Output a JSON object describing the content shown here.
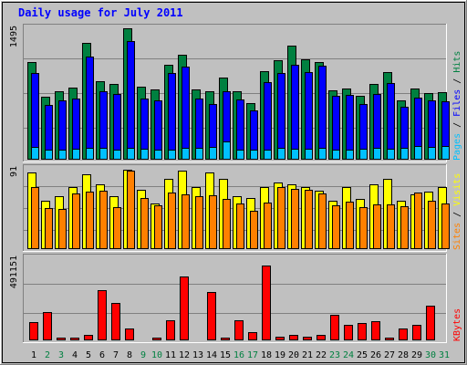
{
  "title": "Daily usage for July 2011",
  "colors": {
    "background": "#c0c0c0",
    "hits": "#008040",
    "files": "#0000ff",
    "pages": "#00c0ff",
    "visits": "#ffff00",
    "sites": "#ff8000",
    "kbytes": "#ff0000",
    "weekday_label": "#000000",
    "weekend_label": "#008040"
  },
  "chart_data": [
    {
      "type": "bar",
      "panel": "hits-files-pages",
      "y_max_label": "1495",
      "ylim": [
        0,
        1495
      ],
      "legend": [
        {
          "name": "Pages",
          "color": "#00c0ff"
        },
        {
          "name": "Files",
          "color": "#0000ff"
        },
        {
          "name": "Hits",
          "color": "#008040"
        }
      ],
      "series": [
        {
          "name": "Hits",
          "values": [
            1110,
            720,
            780,
            820,
            1330,
            890,
            860,
            1495,
            830,
            800,
            1080,
            1190,
            800,
            780,
            930,
            780,
            640,
            1010,
            1130,
            1295,
            1140,
            1110,
            790,
            810,
            730,
            860,
            1000,
            680,
            810,
            760,
            770
          ]
        },
        {
          "name": "Files",
          "values": [
            990,
            620,
            680,
            700,
            1170,
            780,
            750,
            1350,
            700,
            670,
            990,
            1060,
            700,
            630,
            780,
            690,
            560,
            880,
            990,
            1080,
            1000,
            1070,
            730,
            740,
            630,
            750,
            870,
            600,
            710,
            670,
            660
          ]
        },
        {
          "name": "Pages",
          "values": [
            150,
            110,
            110,
            120,
            135,
            130,
            115,
            140,
            120,
            110,
            110,
            130,
            140,
            150,
            205,
            115,
            115,
            110,
            135,
            125,
            125,
            130,
            115,
            115,
            125,
            135,
            125,
            135,
            160,
            145,
            155
          ]
        }
      ]
    },
    {
      "type": "bar",
      "panel": "visits-sites",
      "y_max_label": "91",
      "ylim": [
        0,
        91
      ],
      "legend": [
        {
          "name": "Sites",
          "color": "#ff8000"
        },
        {
          "name": "Visits",
          "color": "#ffff00"
        }
      ],
      "series": [
        {
          "name": "Visits",
          "values": [
            87,
            55,
            60,
            70,
            85,
            73,
            60,
            90,
            67,
            52,
            80,
            89,
            70,
            87,
            80,
            60,
            58,
            70,
            75,
            73,
            70,
            66,
            55,
            70,
            57,
            73,
            80,
            55,
            62,
            65,
            70
          ]
        },
        {
          "name": "Sites",
          "values": [
            70,
            47,
            45,
            63,
            65,
            66,
            48,
            89,
            58,
            50,
            64,
            62,
            60,
            61,
            57,
            52,
            43,
            53,
            70,
            68,
            67,
            63,
            50,
            54,
            48,
            51,
            51,
            49,
            64,
            55,
            52
          ]
        }
      ]
    },
    {
      "type": "bar",
      "panel": "kbytes",
      "y_max_label": "491151",
      "ylim": [
        0,
        491151
      ],
      "legend": [
        {
          "name": "KBytes",
          "color": "#ff0000"
        }
      ],
      "series": [
        {
          "name": "KBytes",
          "values": [
            111000,
            167000,
            14000,
            17000,
            32000,
            299000,
            226000,
            73000,
            7000,
            14000,
            118000,
            383000,
            8000,
            288000,
            17000,
            119000,
            48000,
            445000,
            24000,
            34000,
            24000,
            33000,
            152000,
            92000,
            103000,
            112000,
            16000,
            71000,
            95000,
            208000,
            0
          ]
        }
      ]
    }
  ],
  "x_labels": [
    {
      "label": "1",
      "weekend": false
    },
    {
      "label": "2",
      "weekend": true
    },
    {
      "label": "3",
      "weekend": true
    },
    {
      "label": "4",
      "weekend": false
    },
    {
      "label": "5",
      "weekend": false
    },
    {
      "label": "6",
      "weekend": false
    },
    {
      "label": "7",
      "weekend": false
    },
    {
      "label": "8",
      "weekend": false
    },
    {
      "label": "9",
      "weekend": true
    },
    {
      "label": "10",
      "weekend": true
    },
    {
      "label": "11",
      "weekend": false
    },
    {
      "label": "12",
      "weekend": false
    },
    {
      "label": "13",
      "weekend": false
    },
    {
      "label": "14",
      "weekend": false
    },
    {
      "label": "15",
      "weekend": false
    },
    {
      "label": "16",
      "weekend": true
    },
    {
      "label": "17",
      "weekend": true
    },
    {
      "label": "18",
      "weekend": false
    },
    {
      "label": "19",
      "weekend": false
    },
    {
      "label": "20",
      "weekend": false
    },
    {
      "label": "21",
      "weekend": false
    },
    {
      "label": "22",
      "weekend": false
    },
    {
      "label": "23",
      "weekend": true
    },
    {
      "label": "24",
      "weekend": true
    },
    {
      "label": "25",
      "weekend": false
    },
    {
      "label": "26",
      "weekend": false
    },
    {
      "label": "27",
      "weekend": false
    },
    {
      "label": "28",
      "weekend": false
    },
    {
      "label": "29",
      "weekend": false
    },
    {
      "label": "30",
      "weekend": true
    },
    {
      "label": "31",
      "weekend": true
    }
  ]
}
